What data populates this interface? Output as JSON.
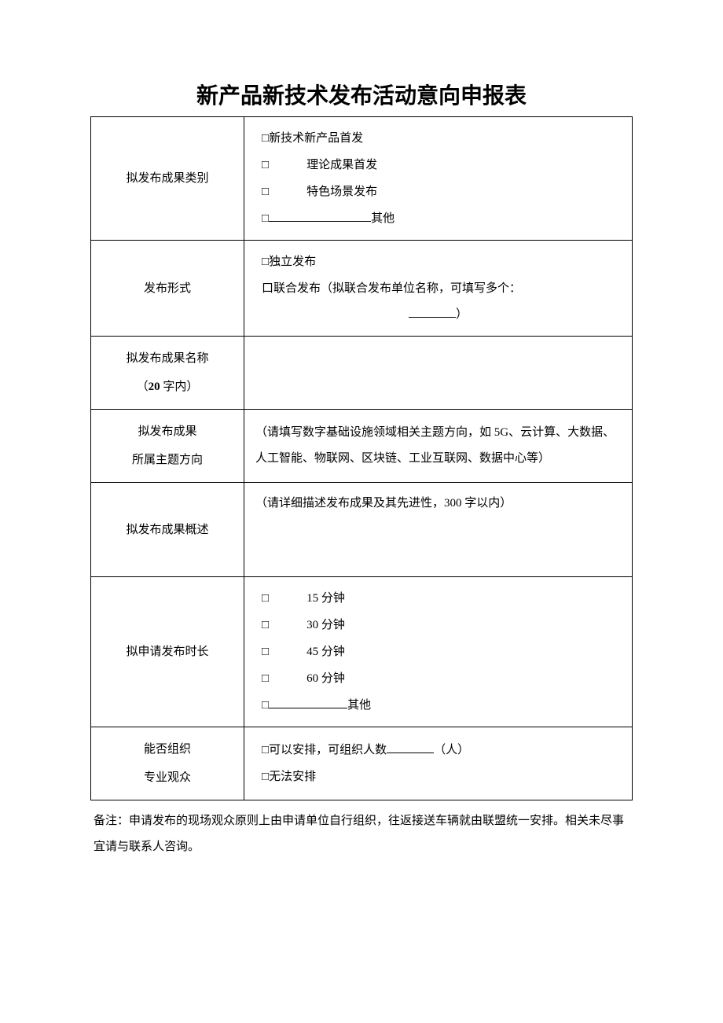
{
  "title": "新产品新技术发布活动意向申报表",
  "rows": {
    "category": {
      "label": "拟发布成果类别",
      "opt1": "新技术新产品首发",
      "opt2": "理论成果首发",
      "opt3": "特色场景发布",
      "opt4": "其他"
    },
    "format": {
      "label": "发布形式",
      "opt1": "独立发布",
      "opt2": "联合发布（拟联合发布单位名称，可填写多个：",
      "opt2_close": "）"
    },
    "name": {
      "label_line1": "拟发布成果名称",
      "label_line2_prefix": "（",
      "label_line2_bold": "20",
      "label_line2_suffix": " 字内）"
    },
    "theme": {
      "label_line1": "拟发布成果",
      "label_line2": "所属主题方向",
      "hint": "（请填写数字基础设施领域相关主题方向，如 5G、云计算、大数据、人工智能、物联网、区块链、工业互联网、数据中心等）"
    },
    "summary": {
      "label": "拟发布成果概述",
      "hint": "（请详细描述发布成果及其先进性，300 字以内）"
    },
    "duration": {
      "label": "拟申请发布时长",
      "opt1": "15 分钟",
      "opt2": "30 分钟",
      "opt3": "45 分钟",
      "opt4": "60 分钟",
      "opt5": "其他"
    },
    "audience": {
      "label_line1": "能否组织",
      "label_line2": "专业观众",
      "opt1_prefix": "可以安排，可组织人数",
      "opt1_suffix": "（人）",
      "opt2": "无法安排"
    }
  },
  "note": "备注：申请发布的现场观众原则上由申请单位自行组织，往返接送车辆就由联盟统一安排。相关未尽事宜请与联系人咨询。"
}
